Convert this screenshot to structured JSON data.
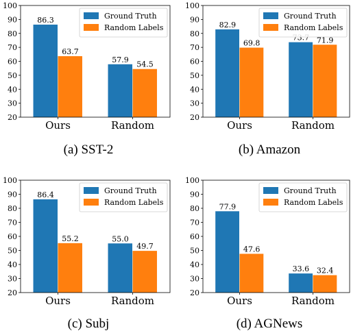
{
  "colors": {
    "ground_truth": "#1f77b4",
    "random_labels": "#ff7f0e"
  },
  "chart_data": [
    {
      "type": "bar",
      "caption": "(a)  SST-2",
      "categories": [
        "Ours",
        "Random"
      ],
      "series": [
        {
          "name": "Ground Truth",
          "values": [
            86.3,
            57.9
          ]
        },
        {
          "name": "Random Labels",
          "values": [
            63.7,
            54.5
          ]
        }
      ],
      "ylim": [
        20,
        100
      ],
      "yticks": [
        20,
        30,
        40,
        50,
        60,
        70,
        80,
        90,
        100
      ],
      "legend": "top-right"
    },
    {
      "type": "bar",
      "caption": "(b)  Amazon",
      "categories": [
        "Ours",
        "Random"
      ],
      "series": [
        {
          "name": "Ground Truth",
          "values": [
            82.9,
            73.7
          ]
        },
        {
          "name": "Random Labels",
          "values": [
            69.8,
            71.9
          ]
        }
      ],
      "ylim": [
        20,
        100
      ],
      "yticks": [
        20,
        30,
        40,
        50,
        60,
        70,
        80,
        90,
        100
      ],
      "legend": "top-right"
    },
    {
      "type": "bar",
      "caption": "(c)  Subj",
      "categories": [
        "Ours",
        "Random"
      ],
      "series": [
        {
          "name": "Ground Truth",
          "values": [
            86.4,
            55.0
          ]
        },
        {
          "name": "Random Labels",
          "values": [
            55.2,
            49.7
          ]
        }
      ],
      "ylim": [
        20,
        100
      ],
      "yticks": [
        20,
        30,
        40,
        50,
        60,
        70,
        80,
        90,
        100
      ],
      "legend": "top-right"
    },
    {
      "type": "bar",
      "caption": "(d)  AGNews",
      "categories": [
        "Ours",
        "Random"
      ],
      "series": [
        {
          "name": "Ground Truth",
          "values": [
            77.9,
            33.6
          ]
        },
        {
          "name": "Random Labels",
          "values": [
            47.6,
            32.4
          ]
        }
      ],
      "ylim": [
        20,
        100
      ],
      "yticks": [
        20,
        30,
        40,
        50,
        60,
        70,
        80,
        90,
        100
      ],
      "legend": "top-right"
    }
  ]
}
